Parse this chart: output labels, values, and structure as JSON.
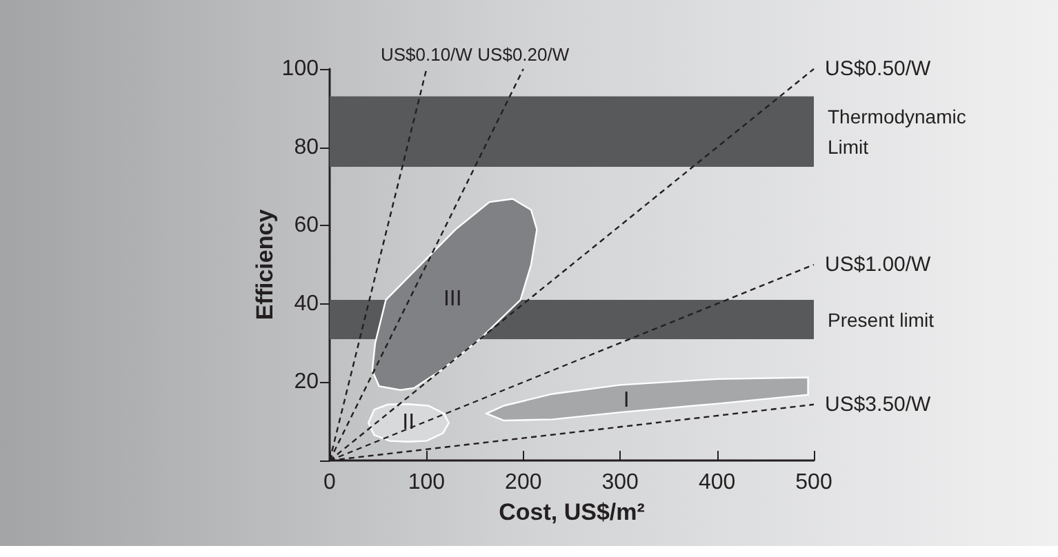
{
  "chart_data": {
    "type": "line",
    "xlabel": "Cost, US$/m²",
    "ylabel": "Efficiency",
    "xlim": [
      0,
      500
    ],
    "ylim": [
      0,
      100
    ],
    "xticks": [
      0,
      100,
      200,
      300,
      400,
      500
    ],
    "yticks": [
      {
        "value": 0,
        "label": null
      },
      20,
      40,
      60,
      80,
      100
    ],
    "grid": false,
    "legend": false,
    "marker": "none",
    "line_style": "dashed",
    "bands": [
      {
        "axis": "y",
        "from": 75,
        "to": 93,
        "label": "Thermodynamic Limit",
        "color": "#58595b"
      },
      {
        "axis": "y",
        "from": 31,
        "to": 41,
        "label": "Present limit",
        "color": "#58595b"
      }
    ],
    "series": [
      {
        "type": "area",
        "name": "I",
        "color": "#a6a7a9",
        "x": [
          162,
          180,
          230,
          300,
          400,
          494,
          494,
          400,
          300,
          230,
          180
        ],
        "values": [
          12,
          14,
          17,
          19.3,
          20.8,
          21.2,
          16.8,
          14.5,
          12.3,
          10.5,
          10.2
        ]
      },
      {
        "type": "area",
        "name": "II",
        "color": "#d8d9db",
        "x": [
          40,
          46,
          60,
          81,
          102,
          118,
          123,
          117,
          100,
          81,
          62,
          46
        ],
        "values": [
          9.6,
          13,
          14.3,
          14.4,
          14,
          12,
          9.6,
          7,
          5,
          4.8,
          5,
          6.5
        ]
      },
      {
        "type": "area",
        "name": "III",
        "color": "#808184",
        "x": [
          189,
          208,
          214,
          208,
          197,
          155,
          115,
          87,
          73,
          51,
          44,
          47,
          58,
          90,
          130,
          165
        ],
        "values": [
          66.8,
          64,
          59,
          50,
          41,
          31,
          23,
          18.5,
          18,
          19,
          23,
          30,
          41,
          49,
          59,
          66
        ]
      },
      {
        "name": "US$0.10/W",
        "color": "#231f20",
        "x": [
          0,
          100
        ],
        "values": [
          0,
          100
        ]
      },
      {
        "name": "US$0.20/W",
        "color": "#231f20",
        "x": [
          0,
          200
        ],
        "values": [
          0,
          100
        ]
      },
      {
        "name": "US$0.50/W",
        "color": "#231f20",
        "x": [
          0,
          500
        ],
        "values": [
          0,
          100
        ]
      },
      {
        "name": "US$1.00/W",
        "color": "#231f20",
        "x": [
          0,
          500
        ],
        "values": [
          0,
          50
        ]
      },
      {
        "name": "US$3.50/W",
        "color": "#231f20",
        "x": [
          0,
          500
        ],
        "values": [
          0,
          14.3
        ]
      }
    ]
  }
}
